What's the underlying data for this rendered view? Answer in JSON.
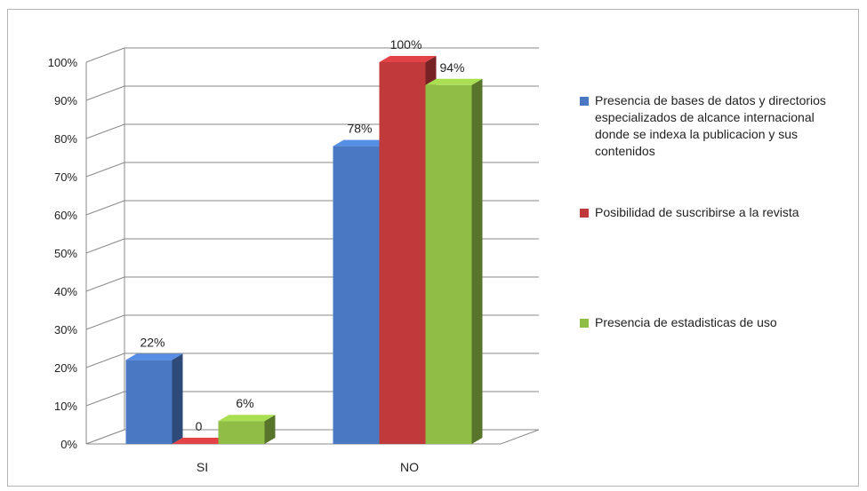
{
  "chart_data": {
    "type": "bar",
    "categories": [
      "SI",
      "NO"
    ],
    "series": [
      {
        "name": "Presencia de  bases de datos y directorios especializados de alcance internacional donde se indexa la publicacion y sus contenidos",
        "values": [
          22,
          78
        ],
        "labels": [
          "22%",
          "78%"
        ],
        "color": "#4a78c2"
      },
      {
        "name": "Posibilidad de  suscribirse a la revista",
        "values": [
          0,
          100
        ],
        "labels": [
          "0",
          "100%"
        ],
        "color": "#c0393b"
      },
      {
        "name": "Presencia de estadisticas de uso",
        "values": [
          6,
          94
        ],
        "labels": [
          "6%",
          "94%"
        ],
        "color": "#8fbd45"
      }
    ],
    "y_ticks": [
      "0%",
      "10%",
      "20%",
      "30%",
      "40%",
      "50%",
      "60%",
      "70%",
      "80%",
      "90%",
      "100%"
    ],
    "ylim": [
      0,
      100
    ],
    "grid": true,
    "legend_position": "right",
    "style": "3d-clustered-column"
  }
}
